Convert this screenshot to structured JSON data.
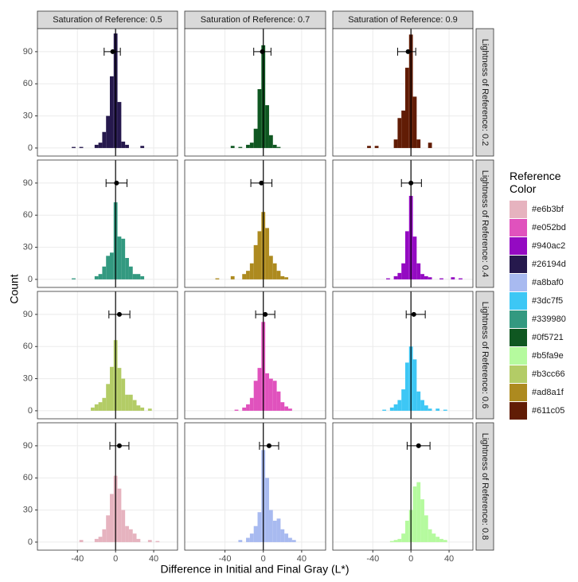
{
  "chart_data": {
    "type": "histogram",
    "x_label": "Difference in Initial and Final Gray (L*)",
    "y_label": "Count",
    "col_labels": [
      "Saturation of Reference: 0.5",
      "Saturation of Reference: 0.7",
      "Saturation of Reference: 0.9"
    ],
    "row_labels": [
      "Lightness of Reference: 0.2",
      "Lightness of Reference: 0.4",
      "Lightness of Reference: 0.6",
      "Lightness of Reference: 0.8"
    ],
    "xlim": [
      -82,
      65
    ],
    "xticks": [
      -40,
      0,
      40
    ],
    "ylim": [
      -7.5,
      111.5
    ],
    "yticks": [
      0,
      30,
      60,
      90
    ],
    "grid": true,
    "vline": 0,
    "errorbar_y": 90,
    "bins": [
      -62,
      -58,
      -54,
      -50,
      -46,
      -42,
      -38,
      -34,
      -30,
      -26,
      -22,
      -18,
      -14,
      -10,
      -6,
      -2,
      2,
      6,
      10,
      14,
      18,
      22,
      26,
      30,
      34,
      38,
      42,
      46,
      50,
      54,
      58,
      62
    ],
    "panels": [
      {
        "color": "#26194d",
        "values": [
          0,
          0,
          0,
          0,
          1,
          0,
          1,
          0,
          0,
          0,
          3,
          5,
          15,
          30,
          67,
          107,
          43,
          6,
          3,
          0,
          0,
          0,
          2,
          0,
          0,
          0,
          0,
          0,
          0,
          0,
          0
        ],
        "mean": -3,
        "lower": -12,
        "upper": 5
      },
      {
        "color": "#0f5721",
        "values": [
          0,
          0,
          0,
          0,
          0,
          0,
          0,
          2,
          0,
          1,
          0,
          3,
          5,
          18,
          55,
          96,
          40,
          12,
          3,
          1,
          0,
          0,
          0,
          0,
          0,
          0,
          0,
          0,
          0,
          0,
          0
        ],
        "mean": -1,
        "lower": -10,
        "upper": 8
      },
      {
        "color": "#611c05",
        "values": [
          0,
          0,
          0,
          0,
          2,
          0,
          2,
          0,
          0,
          0,
          0,
          8,
          28,
          35,
          75,
          106,
          48,
          8,
          0,
          0,
          5,
          0,
          0,
          0,
          0,
          0,
          0,
          0,
          0,
          0,
          0
        ],
        "mean": -3,
        "lower": -14,
        "upper": 5
      },
      {
        "color": "#339980",
        "values": [
          0,
          0,
          0,
          0,
          1,
          0,
          0,
          0,
          0,
          0,
          3,
          5,
          12,
          22,
          25,
          72,
          40,
          38,
          20,
          12,
          5,
          5,
          3,
          0,
          0,
          0,
          0,
          0,
          0,
          0,
          0
        ],
        "mean": 1,
        "lower": -10,
        "upper": 12
      },
      {
        "color": "#ad8a1f",
        "values": [
          0,
          0,
          0,
          1,
          0,
          0,
          0,
          3,
          0,
          0,
          5,
          8,
          15,
          32,
          45,
          63,
          48,
          22,
          15,
          8,
          3,
          2,
          0,
          0,
          0,
          0,
          0,
          0,
          0,
          0,
          0
        ],
        "mean": -2,
        "lower": -13,
        "upper": 9
      },
      {
        "color": "#940ac2",
        "values": [
          0,
          0,
          0,
          0,
          0,
          0,
          0,
          0,
          0,
          1,
          0,
          3,
          6,
          15,
          45,
          78,
          40,
          15,
          5,
          3,
          2,
          0,
          0,
          1,
          0,
          0,
          2,
          0,
          1,
          0,
          0
        ],
        "mean": 0,
        "lower": -10,
        "upper": 11
      },
      {
        "color": "#b3cc66",
        "values": [
          0,
          0,
          0,
          0,
          0,
          0,
          0,
          0,
          0,
          3,
          6,
          8,
          12,
          25,
          41,
          66,
          40,
          30,
          15,
          15,
          10,
          5,
          3,
          0,
          2,
          0,
          0,
          0,
          0,
          0,
          0
        ],
        "mean": 4,
        "lower": -7,
        "upper": 15
      },
      {
        "color": "#e052bd",
        "values": [
          0,
          0,
          0,
          0,
          0,
          0,
          0,
          0,
          1,
          0,
          3,
          6,
          12,
          28,
          40,
          83,
          35,
          30,
          28,
          18,
          8,
          4,
          2,
          0,
          0,
          0,
          0,
          0,
          0,
          0,
          0
        ],
        "mean": 2,
        "lower": -8,
        "upper": 12
      },
      {
        "color": "#3dc7f5",
        "values": [
          0,
          0,
          0,
          0,
          0,
          0,
          0,
          0,
          1,
          0,
          3,
          6,
          10,
          20,
          45,
          60,
          48,
          18,
          10,
          5,
          2,
          0,
          2,
          0,
          1,
          0,
          0,
          0,
          0,
          0,
          0
        ],
        "mean": 3,
        "lower": -5,
        "upper": 15
      },
      {
        "color": "#e6b3bf",
        "values": [
          0,
          0,
          0,
          0,
          0,
          0,
          2,
          0,
          0,
          0,
          3,
          5,
          12,
          25,
          45,
          62,
          50,
          30,
          15,
          12,
          8,
          3,
          0,
          0,
          2,
          0,
          1,
          0,
          0,
          0,
          0
        ],
        "mean": 4,
        "lower": -6,
        "upper": 14
      },
      {
        "color": "#a8baf0",
        "values": [
          0,
          0,
          0,
          0,
          0,
          0,
          0,
          0,
          0,
          2,
          0,
          4,
          8,
          15,
          28,
          86,
          60,
          30,
          20,
          22,
          12,
          8,
          4,
          2,
          0,
          0,
          0,
          0,
          0,
          0,
          0
        ],
        "mean": 6,
        "lower": -4,
        "upper": 16
      },
      {
        "color": "#b5fa9e",
        "values": [
          0,
          0,
          0,
          0,
          0,
          0,
          0,
          0,
          0,
          0,
          1,
          2,
          3,
          8,
          20,
          30,
          52,
          56,
          40,
          25,
          12,
          8,
          5,
          3,
          2,
          0,
          0,
          0,
          0,
          0,
          0
        ],
        "mean": 8,
        "lower": -4,
        "upper": 20
      }
    ],
    "legend_title": "Reference Color",
    "series": [
      {
        "name": "#e6b3bf",
        "color": "#e6b3bf"
      },
      {
        "name": "#e052bd",
        "color": "#e052bd"
      },
      {
        "name": "#940ac2",
        "color": "#940ac2"
      },
      {
        "name": "#26194d",
        "color": "#26194d"
      },
      {
        "name": "#a8baf0",
        "color": "#a8baf0"
      },
      {
        "name": "#3dc7f5",
        "color": "#3dc7f5"
      },
      {
        "name": "#339980",
        "color": "#339980"
      },
      {
        "name": "#0f5721",
        "color": "#0f5721"
      },
      {
        "name": "#b5fa9e",
        "color": "#b5fa9e"
      },
      {
        "name": "#b3cc66",
        "color": "#b3cc66"
      },
      {
        "name": "#ad8a1f",
        "color": "#ad8a1f"
      },
      {
        "name": "#611c05",
        "color": "#611c05"
      }
    ]
  }
}
